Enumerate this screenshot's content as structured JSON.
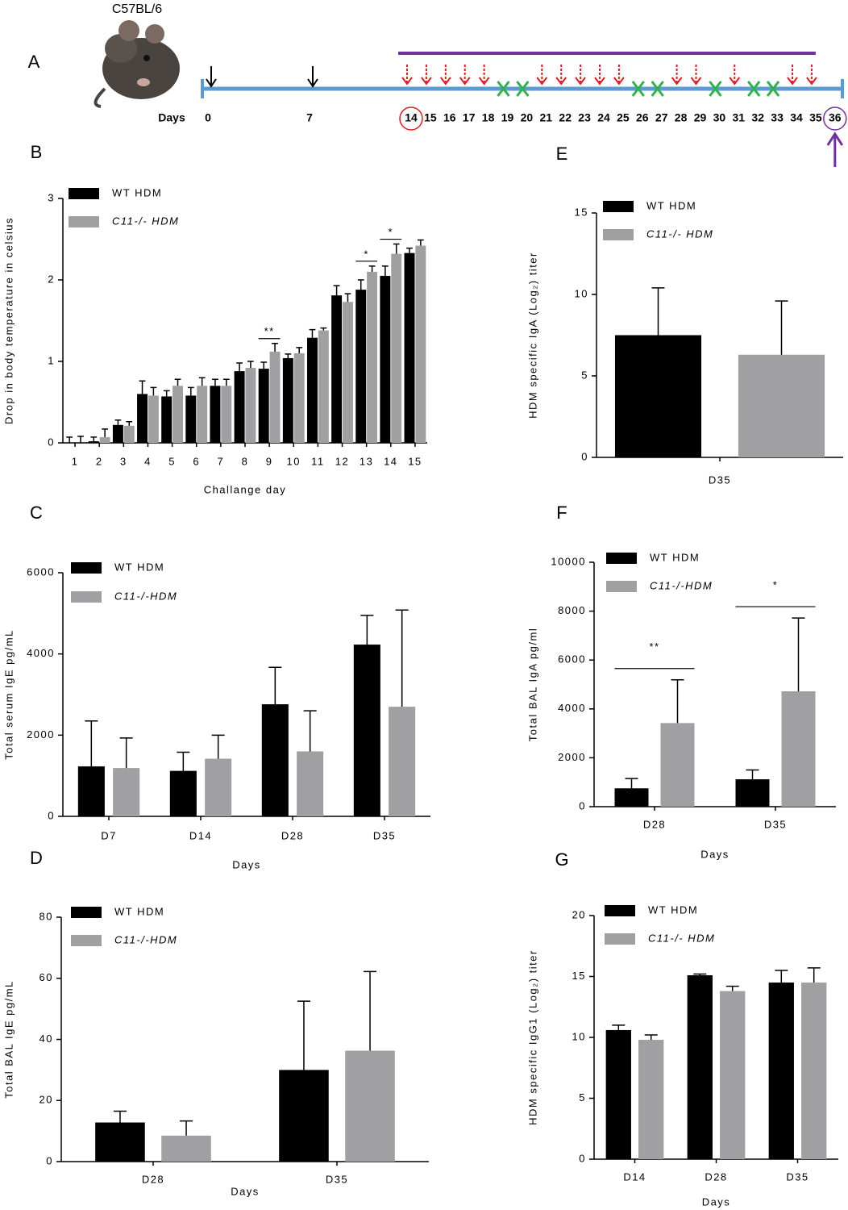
{
  "timeline": {
    "strain": "C57BL/6",
    "panel": "A",
    "axis_label": "Days",
    "days": [
      0,
      7,
      14,
      15,
      16,
      17,
      18,
      19,
      20,
      21,
      22,
      23,
      24,
      25,
      26,
      27,
      28,
      29,
      30,
      31,
      32,
      33,
      34,
      35,
      36
    ],
    "sensitization_days": [
      0,
      7
    ],
    "challenge_days": [
      14,
      15,
      16,
      17,
      18,
      21,
      22,
      23,
      24,
      25,
      28,
      29,
      31,
      34,
      35
    ],
    "rest_days": [
      19,
      20,
      26,
      27,
      30,
      32,
      33
    ],
    "challenge_period": [
      14,
      35
    ],
    "highlight_days": [
      14,
      36
    ],
    "endpoint_day": 36
  },
  "chart_data": [
    {
      "type": "bar",
      "panel": "B",
      "x_label": "Challange day",
      "y_label": "Drop in body temperature in celsius",
      "categories": [
        "1",
        "2",
        "3",
        "4",
        "5",
        "6",
        "7",
        "8",
        "9",
        "10",
        "11",
        "12",
        "13",
        "14",
        "15"
      ],
      "series": [
        {
          "name": "WT HDM",
          "color": "#000000",
          "values": [
            0,
            0.02,
            0.22,
            0.6,
            0.57,
            0.58,
            0.7,
            0.88,
            0.91,
            1.04,
            1.29,
            1.81,
            1.88,
            2.05,
            2.33
          ],
          "errors": [
            0.07,
            0.05,
            0.06,
            0.16,
            0.07,
            0.1,
            0.08,
            0.1,
            0.08,
            0.05,
            0.1,
            0.12,
            0.12,
            0.12,
            0.06
          ]
        },
        {
          "name": "C11-/- HDM",
          "color": "#a0a0a3",
          "values": [
            0,
            0.07,
            0.21,
            0.58,
            0.7,
            0.7,
            0.7,
            0.92,
            1.12,
            1.1,
            1.38,
            1.73,
            2.1,
            2.32,
            2.42
          ],
          "errors": [
            0.08,
            0.1,
            0.05,
            0.1,
            0.08,
            0.1,
            0.08,
            0.08,
            0.1,
            0.07,
            0.03,
            0.1,
            0.07,
            0.12,
            0.07
          ]
        }
      ],
      "ylim": [
        0,
        3
      ],
      "yticks": [
        0,
        1,
        2,
        3
      ],
      "annotations": [
        {
          "category": "9",
          "text": "**"
        },
        {
          "category": "13",
          "text": "*"
        },
        {
          "category": "14",
          "text": "*"
        }
      ]
    },
    {
      "type": "bar",
      "panel": "C",
      "x_label": "Days",
      "y_label": "Total serum IgE pg/mL",
      "categories": [
        "D7",
        "D14",
        "D28",
        "D35"
      ],
      "series": [
        {
          "name": "WT HDM",
          "color": "#000000",
          "values": [
            1230,
            1120,
            2760,
            4230
          ],
          "errors": [
            1120,
            460,
            910,
            720
          ]
        },
        {
          "name": "C11-/-HDM",
          "color": "#a0a0a3",
          "values": [
            1190,
            1420,
            1600,
            2700
          ],
          "errors": [
            740,
            580,
            1000,
            2380
          ]
        }
      ],
      "ylim": [
        0,
        6000
      ],
      "yticks": [
        0,
        2000,
        4000,
        6000
      ],
      "annotations": []
    },
    {
      "type": "bar",
      "panel": "D",
      "x_label": "Days",
      "y_label": "Total BAL IgE pg/mL",
      "categories": [
        "D28",
        "D35"
      ],
      "series": [
        {
          "name": "WT HDM",
          "color": "#000000",
          "values": [
            12.8,
            30
          ],
          "errors": [
            3.7,
            22.5
          ]
        },
        {
          "name": "C11-/-HDM",
          "color": "#a0a0a3",
          "values": [
            8.5,
            36.3
          ],
          "errors": [
            4.8,
            25.9
          ]
        }
      ],
      "ylim": [
        0,
        80
      ],
      "yticks": [
        0,
        20,
        40,
        60,
        80
      ],
      "annotations": []
    },
    {
      "type": "bar",
      "panel": "E",
      "y_label": "HDM specific IgA (Log₂) titer",
      "categories": [
        "D35"
      ],
      "series": [
        {
          "name": "WT HDM",
          "color": "#000000",
          "values": [
            7.5
          ],
          "errors": [
            2.9
          ]
        },
        {
          "name": "C11-/- HDM",
          "color": "#a0a0a3",
          "values": [
            6.3
          ],
          "errors": [
            3.3
          ]
        }
      ],
      "ylim": [
        0,
        15
      ],
      "yticks": [
        0,
        5,
        10,
        15
      ],
      "annotations": []
    },
    {
      "type": "bar",
      "panel": "F",
      "x_label": "Days",
      "y_label": "Total BAL IgA pg/ml",
      "categories": [
        "D28",
        "D35"
      ],
      "series": [
        {
          "name": "WT HDM",
          "color": "#000000",
          "values": [
            750,
            1120
          ],
          "errors": [
            400,
            380
          ]
        },
        {
          "name": "C11-/-HDM",
          "color": "#a0a0a3",
          "values": [
            3420,
            4720
          ],
          "errors": [
            1770,
            3000
          ]
        }
      ],
      "ylim": [
        0,
        10000
      ],
      "yticks": [
        0,
        2000,
        4000,
        6000,
        8000,
        10000
      ],
      "annotations": [
        {
          "category": "D28",
          "text": "**"
        },
        {
          "category": "D35",
          "text": "*"
        }
      ]
    },
    {
      "type": "bar",
      "panel": "G",
      "x_label": "Days",
      "y_label": "HDM specific IgG1 (Log₂) titer",
      "categories": [
        "D14",
        "D28",
        "D35"
      ],
      "series": [
        {
          "name": "WT HDM",
          "color": "#000000",
          "values": [
            10.6,
            15.1,
            14.5
          ],
          "errors": [
            0.4,
            0.1,
            1.0
          ]
        },
        {
          "name": "C11-/- HDM",
          "color": "#a0a0a3",
          "values": [
            9.8,
            13.8,
            14.5
          ],
          "errors": [
            0.4,
            0.4,
            1.2
          ]
        }
      ],
      "ylim": [
        0,
        20
      ],
      "yticks": [
        0,
        5,
        10,
        15,
        20
      ],
      "annotations": []
    }
  ]
}
